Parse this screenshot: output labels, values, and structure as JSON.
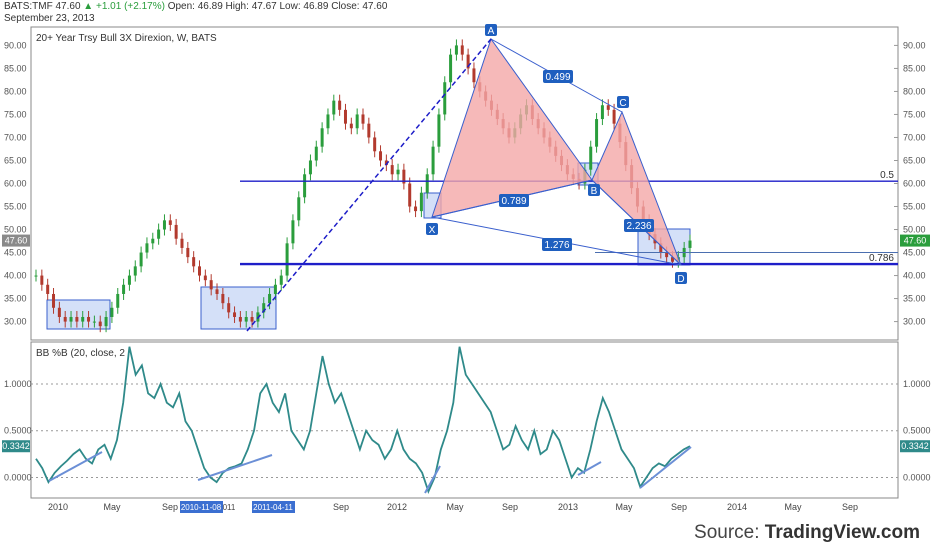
{
  "header": {
    "symbol": "BATS:TMF",
    "last": "47.60",
    "change": "+1.01 (+2.17%)",
    "open_label": "Open:",
    "open": "46.89",
    "high_label": "High:",
    "high": "47.67",
    "low_label": "Low:",
    "low": "46.89",
    "close_label": "Close:",
    "close": "47.60",
    "date": "September 23, 2013"
  },
  "source": {
    "prefix": "Source: ",
    "name": "TradingView.com"
  },
  "colors": {
    "up": "#2a9d3c",
    "down": "#b23a2e",
    "pattern_fill": "#f4a7a7",
    "pattern_line": "#3a5fcd",
    "box_fill": "#c5d5f5",
    "hline": "#1e1ec8",
    "indicator": "#2f8a8a",
    "badge": "#1f5fbf"
  },
  "chart_data": [
    {
      "type": "candlestick",
      "title": "20+ Year Trsy Bull 3X Direxion, W, BATS",
      "y_ticks": [
        "90.00",
        "85.00",
        "80.00",
        "75.00",
        "70.00",
        "65.00",
        "60.00",
        "55.00",
        "50.00",
        "45.00",
        "40.00",
        "35.00",
        "30.00"
      ],
      "ylim": [
        26,
        94
      ],
      "x_ticks": [
        "2010",
        "May",
        "Sep",
        "2012",
        "May",
        "Sep",
        "2013",
        "May",
        "Sep",
        "2014",
        "May",
        "Sep"
      ],
      "x_highlight_labels": [
        "2010-11-08",
        "011",
        "2011-04-11"
      ],
      "last_price_label": "47.60",
      "harmonic_pattern": {
        "points": [
          {
            "label": "X",
            "x": "2012-03",
            "y": 53
          },
          {
            "label": "A",
            "x": "2012-07",
            "y": 92
          },
          {
            "label": "B",
            "x": "2013-02",
            "y": 60
          },
          {
            "label": "C",
            "x": "2013-04",
            "y": 77
          },
          {
            "label": "D",
            "x": "2013-08",
            "y": 43
          }
        ],
        "ratios": [
          "0.499",
          "0.789",
          "2.236",
          "1.276"
        ]
      },
      "horizontal_levels": [
        {
          "value": 60.5,
          "label": "0.5"
        },
        {
          "value": 42.5,
          "label": "0.786"
        }
      ],
      "weekly_closes": [
        40,
        38,
        36,
        33,
        31,
        30,
        31,
        30,
        31,
        30,
        30,
        29,
        31,
        33,
        36,
        38,
        40,
        42,
        45,
        47,
        48,
        50,
        52,
        51,
        48,
        46,
        44,
        42,
        40,
        39,
        37,
        36,
        34,
        32,
        31,
        30,
        31,
        30,
        32,
        34,
        36,
        38,
        40,
        47,
        52,
        57,
        62,
        65,
        68,
        72,
        75,
        78,
        76,
        73,
        72,
        75,
        73,
        70,
        67,
        65,
        64,
        62,
        63,
        60,
        55,
        54,
        58,
        62,
        68,
        75,
        82,
        88,
        90,
        88,
        85,
        82,
        80,
        78,
        76,
        74,
        72,
        70,
        72,
        75,
        77,
        74,
        72,
        70,
        68,
        66,
        64,
        62,
        61,
        60,
        63,
        68,
        74,
        77,
        76,
        73,
        69,
        64,
        59,
        55,
        52,
        49,
        47,
        45,
        44,
        43,
        44,
        46,
        47.6
      ]
    },
    {
      "type": "line",
      "title": "BB %B (20, close, 2",
      "y_ticks": [
        "1.0000",
        "0.5000",
        "0.0000"
      ],
      "ylim": [
        -0.22,
        1.45
      ],
      "last_value_label": "0.3342",
      "series": [
        {
          "name": "BB %B",
          "values": [
            0.2,
            0.1,
            -0.05,
            0.05,
            0.12,
            0.18,
            0.25,
            0.3,
            0.2,
            0.15,
            0.3,
            0.35,
            0.2,
            0.4,
            0.8,
            1.4,
            1.1,
            1.2,
            0.9,
            0.85,
            1.0,
            0.8,
            0.75,
            0.9,
            0.6,
            0.5,
            0.3,
            0.1,
            0.0,
            -0.05,
            0.05,
            0.1,
            0.12,
            0.15,
            0.3,
            0.5,
            0.9,
            1.0,
            0.8,
            0.7,
            0.9,
            0.5,
            0.4,
            0.3,
            0.5,
            0.9,
            1.3,
            1.0,
            0.8,
            0.9,
            0.7,
            0.5,
            0.3,
            0.5,
            0.4,
            0.35,
            0.2,
            0.3,
            0.5,
            0.3,
            0.2,
            0.15,
            0.05,
            -0.15,
            0.0,
            0.3,
            0.5,
            0.8,
            1.4,
            1.1,
            1.0,
            0.9,
            0.8,
            0.7,
            0.5,
            0.3,
            0.35,
            0.55,
            0.4,
            0.3,
            0.5,
            0.25,
            0.3,
            0.5,
            0.4,
            0.2,
            0.0,
            0.1,
            0.05,
            0.3,
            0.6,
            0.85,
            0.7,
            0.5,
            0.3,
            0.2,
            0.1,
            -0.1,
            0.0,
            0.1,
            0.15,
            0.12,
            0.2,
            0.25,
            0.3,
            0.3342
          ]
        }
      ]
    }
  ]
}
